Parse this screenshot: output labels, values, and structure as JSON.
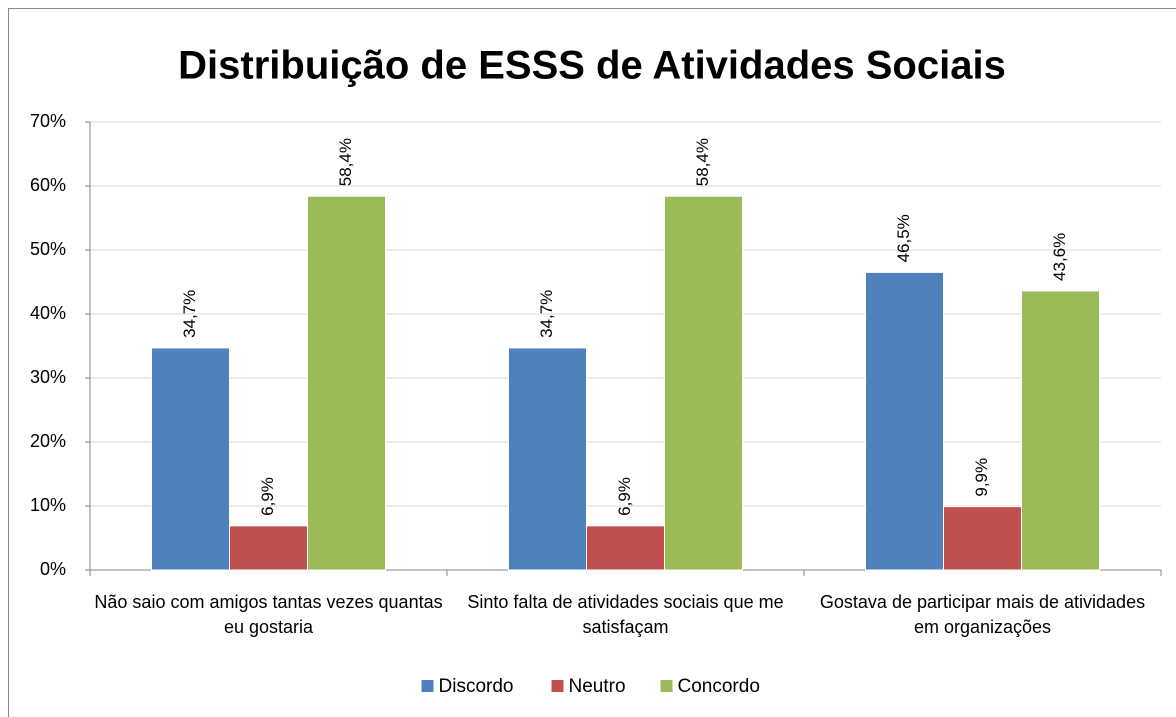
{
  "chart_data": {
    "type": "bar",
    "title": "Distribuição de ESSS de Atividades Sociais",
    "categories": [
      "Não saio com amigos tantas vezes quantas eu gostaria",
      "Sinto falta de atividades sociais que me satisfaçam",
      "Gostava de participar mais de atividades em organizações"
    ],
    "series": [
      {
        "name": "Discordo",
        "color": "#4f81bd",
        "values": [
          34.7,
          34.7,
          46.5
        ],
        "value_labels": [
          "34,7%",
          "34,7%",
          "46,5%"
        ]
      },
      {
        "name": "Neutro",
        "color": "#c0504d",
        "values": [
          6.9,
          6.9,
          9.9
        ],
        "value_labels": [
          "6,9%",
          "6,9%",
          "9,9%"
        ]
      },
      {
        "name": "Concordo",
        "color": "#9bbb59",
        "values": [
          58.4,
          58.4,
          43.6
        ],
        "value_labels": [
          "58,4%",
          "58,4%",
          "43,6%"
        ]
      }
    ],
    "ylim": [
      0,
      70
    ],
    "yticks": [
      {
        "value": 0,
        "label": "0%"
      },
      {
        "value": 10,
        "label": "10%"
      },
      {
        "value": 20,
        "label": "20%"
      },
      {
        "value": 30,
        "label": "30%"
      },
      {
        "value": 40,
        "label": "40%"
      },
      {
        "value": 50,
        "label": "50%"
      },
      {
        "value": 60,
        "label": "60%"
      },
      {
        "value": 70,
        "label": "70%"
      }
    ],
    "grid": true,
    "legend": "bottom"
  }
}
